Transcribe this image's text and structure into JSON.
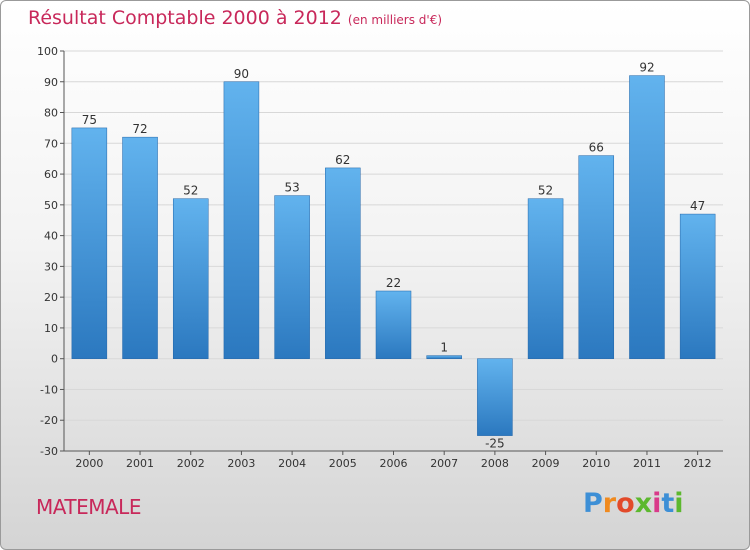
{
  "header": {
    "title": "Résultat Comptable 2000 à 2012",
    "subtitle": "(en milliers d'€)"
  },
  "commune": "MATEMALE",
  "logo": {
    "text": "Proxiti",
    "letters": [
      "P",
      "r",
      "o",
      "x",
      "i",
      "t",
      "i"
    ],
    "colors": [
      "#3d8fd6",
      "#f08a1e",
      "#e24a2a",
      "#5cb82e",
      "#d93a8a",
      "#3d8fd6",
      "#5cb82e"
    ]
  },
  "colors": {
    "bar_top": "#62b3ee",
    "bar_bottom": "#2b78bf",
    "grid": "#d8d8d8",
    "axis": "#555555"
  },
  "chart_data": {
    "type": "bar",
    "title": "Résultat Comptable 2000 à 2012",
    "subtitle": "(en milliers d'€)",
    "categories": [
      "2000",
      "2001",
      "2002",
      "2003",
      "2004",
      "2005",
      "2006",
      "2007",
      "2008",
      "2009",
      "2010",
      "2011",
      "2012"
    ],
    "values": [
      75,
      72,
      52,
      90,
      53,
      62,
      22,
      1,
      -25,
      52,
      66,
      92,
      47
    ],
    "ylim": [
      -30,
      100
    ],
    "yticks": [
      -30,
      -20,
      -10,
      0,
      10,
      20,
      30,
      40,
      50,
      60,
      70,
      80,
      90,
      100
    ],
    "grid": true,
    "xlabel": "",
    "ylabel": ""
  }
}
